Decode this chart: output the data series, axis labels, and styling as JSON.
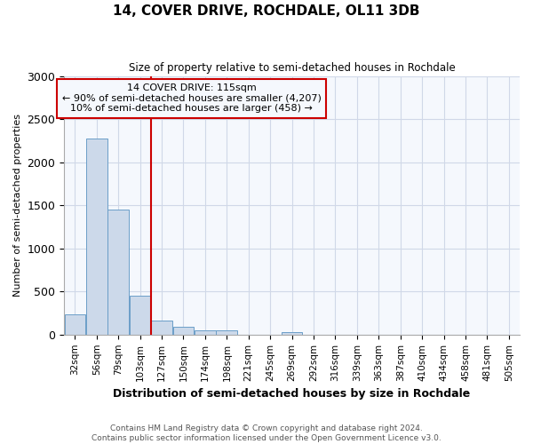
{
  "title": "14, COVER DRIVE, ROCHDALE, OL11 3DB",
  "subtitle": "Size of property relative to semi-detached houses in Rochdale",
  "xlabel": "Distribution of semi-detached houses by size in Rochdale",
  "ylabel": "Number of semi-detached properties",
  "footer_line1": "Contains HM Land Registry data © Crown copyright and database right 2024.",
  "footer_line2": "Contains public sector information licensed under the Open Government Licence v3.0.",
  "categories": [
    "32sqm",
    "56sqm",
    "79sqm",
    "103sqm",
    "127sqm",
    "150sqm",
    "174sqm",
    "198sqm",
    "221sqm",
    "245sqm",
    "269sqm",
    "292sqm",
    "316sqm",
    "339sqm",
    "363sqm",
    "387sqm",
    "410sqm",
    "434sqm",
    "458sqm",
    "481sqm",
    "505sqm"
  ],
  "values": [
    240,
    2270,
    1455,
    455,
    160,
    95,
    45,
    45,
    0,
    0,
    30,
    0,
    0,
    0,
    0,
    0,
    0,
    0,
    0,
    0,
    0
  ],
  "bar_color": "#ccd9ea",
  "bar_edge_color": "#6b9ec8",
  "ylim": [
    0,
    3000
  ],
  "yticks": [
    0,
    500,
    1000,
    1500,
    2000,
    2500,
    3000
  ],
  "property_line_x": 3.5,
  "property_line_color": "#cc0000",
  "annotation_title": "14 COVER DRIVE: 115sqm",
  "annotation_line1": "← 90% of semi-detached houses are smaller (4,207)",
  "annotation_line2": "10% of semi-detached houses are larger (458) →",
  "box_edge_color": "#cc0000",
  "grid_color": "#d0d8e8",
  "background_color": "#f5f8fd",
  "fig_background": "#ffffff"
}
